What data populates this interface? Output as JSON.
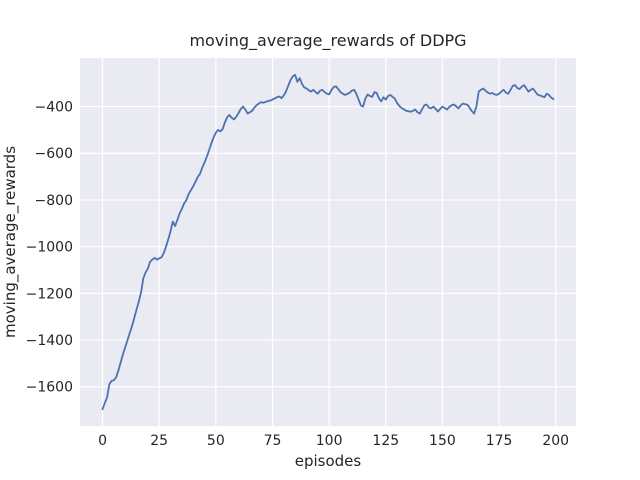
{
  "figure": {
    "title": "moving_average_rewards of DDPG",
    "xlabel": "episodes",
    "ylabel": "moving_average_rewards"
  },
  "chart_data": {
    "type": "line",
    "title": "moving_average_rewards of DDPG",
    "xlabel": "episodes",
    "ylabel": "moving_average_rewards",
    "grid": true,
    "legend": "none",
    "xlim": [
      -9.95,
      208.95
    ],
    "ylim": [
      -1768,
      -192
    ],
    "xticks": {
      "values": [
        0,
        25,
        50,
        75,
        100,
        125,
        150,
        175,
        200
      ],
      "labels": [
        "0",
        "25",
        "50",
        "75",
        "100",
        "125",
        "150",
        "175",
        "200"
      ]
    },
    "yticks": {
      "values": [
        -400,
        -600,
        -800,
        -1000,
        -1200,
        -1400,
        -1600
      ],
      "labels": [
        "−400",
        "−600",
        "−800",
        "−1000",
        "−1200",
        "−1400",
        "−1600"
      ]
    },
    "style": {
      "plot_bg": "#eaeaf2",
      "grid_color": "#ffffff",
      "text_color": "#262626",
      "line_color": "#4c72b0",
      "line_width": 1.8
    },
    "series": [
      {
        "name": "moving_average_rewards",
        "color": "#4c72b0",
        "x": [
          0,
          1,
          2,
          3,
          4,
          5,
          6,
          7,
          8,
          9,
          10,
          11,
          12,
          13,
          14,
          15,
          16,
          17,
          18,
          19,
          20,
          21,
          22,
          23,
          24,
          25,
          26,
          27,
          28,
          29,
          30,
          31,
          32,
          33,
          34,
          35,
          36,
          37,
          38,
          39,
          40,
          41,
          42,
          43,
          44,
          45,
          46,
          47,
          48,
          49,
          50,
          51,
          52,
          53,
          54,
          55,
          56,
          57,
          58,
          59,
          60,
          61,
          62,
          63,
          64,
          65,
          66,
          67,
          68,
          69,
          70,
          71,
          72,
          73,
          74,
          75,
          76,
          77,
          78,
          79,
          80,
          81,
          82,
          83,
          84,
          85,
          86,
          87,
          88,
          89,
          90,
          91,
          92,
          93,
          94,
          95,
          96,
          97,
          98,
          99,
          100,
          101,
          102,
          103,
          104,
          105,
          106,
          107,
          108,
          109,
          110,
          111,
          112,
          113,
          114,
          115,
          116,
          117,
          118,
          119,
          120,
          121,
          122,
          123,
          124,
          125,
          126,
          127,
          128,
          129,
          130,
          131,
          132,
          133,
          134,
          135,
          136,
          137,
          138,
          139,
          140,
          141,
          142,
          143,
          144,
          145,
          146,
          147,
          148,
          149,
          150,
          151,
          152,
          153,
          154,
          155,
          156,
          157,
          158,
          159,
          160,
          161,
          162,
          163,
          164,
          165,
          166,
          167,
          168,
          169,
          170,
          171,
          172,
          173,
          174,
          175,
          176,
          177,
          178,
          179,
          180,
          181,
          182,
          183,
          184,
          185,
          186,
          187,
          188,
          189,
          190,
          191,
          192,
          193,
          194,
          195,
          196,
          197,
          198,
          199
        ],
        "y": [
          -1696,
          -1670,
          -1645,
          -1590,
          -1575,
          -1572,
          -1560,
          -1530,
          -1495,
          -1462,
          -1430,
          -1400,
          -1370,
          -1340,
          -1305,
          -1270,
          -1235,
          -1195,
          -1136,
          -1110,
          -1093,
          -1065,
          -1055,
          -1048,
          -1056,
          -1050,
          -1046,
          -1028,
          -1000,
          -968,
          -935,
          -892,
          -912,
          -886,
          -858,
          -838,
          -815,
          -800,
          -775,
          -758,
          -742,
          -722,
          -702,
          -688,
          -662,
          -640,
          -615,
          -588,
          -558,
          -532,
          -512,
          -500,
          -506,
          -497,
          -468,
          -445,
          -436,
          -448,
          -455,
          -444,
          -428,
          -410,
          -400,
          -412,
          -430,
          -424,
          -418,
          -405,
          -394,
          -387,
          -381,
          -384,
          -380,
          -376,
          -374,
          -370,
          -365,
          -360,
          -357,
          -364,
          -352,
          -334,
          -310,
          -286,
          -270,
          -264,
          -294,
          -278,
          -302,
          -318,
          -322,
          -330,
          -336,
          -328,
          -338,
          -345,
          -332,
          -328,
          -338,
          -345,
          -348,
          -330,
          -316,
          -313,
          -325,
          -338,
          -345,
          -350,
          -346,
          -341,
          -332,
          -328,
          -345,
          -370,
          -395,
          -400,
          -365,
          -348,
          -355,
          -358,
          -338,
          -342,
          -365,
          -378,
          -360,
          -370,
          -355,
          -350,
          -358,
          -366,
          -385,
          -398,
          -406,
          -412,
          -418,
          -420,
          -422,
          -418,
          -413,
          -424,
          -430,
          -412,
          -395,
          -391,
          -404,
          -408,
          -400,
          -410,
          -421,
          -410,
          -400,
          -406,
          -413,
          -402,
          -395,
          -391,
          -398,
          -408,
          -396,
          -387,
          -390,
          -392,
          -405,
          -420,
          -430,
          -400,
          -336,
          -328,
          -323,
          -332,
          -340,
          -345,
          -342,
          -348,
          -350,
          -345,
          -336,
          -328,
          -340,
          -345,
          -330,
          -312,
          -308,
          -320,
          -325,
          -315,
          -308,
          -322,
          -336,
          -328,
          -323,
          -336,
          -349,
          -352,
          -356,
          -360,
          -345,
          -350,
          -362,
          -368
        ]
      }
    ]
  }
}
